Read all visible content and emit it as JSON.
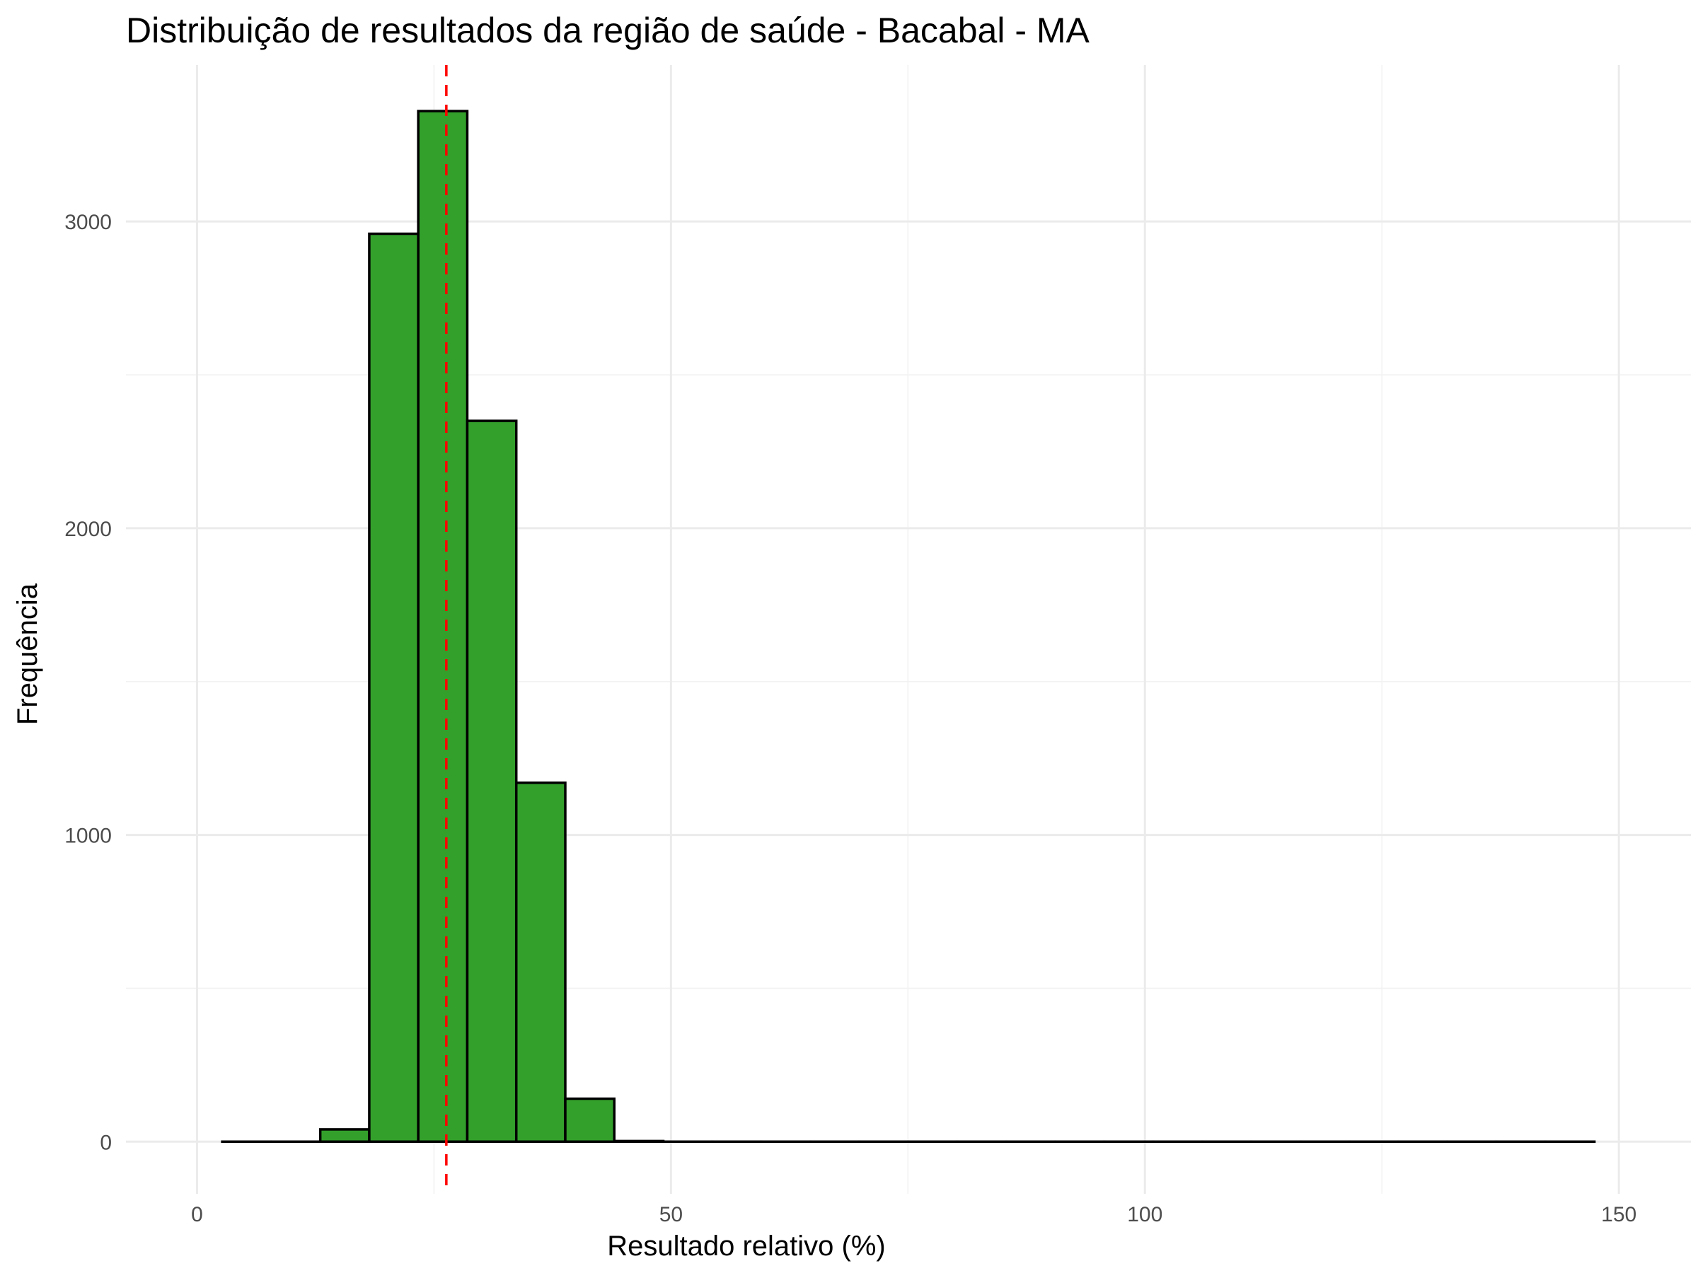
{
  "chart_data": {
    "type": "bar",
    "title": "Distribuição de resultados da região de saúde - Bacabal - MA",
    "xlabel": "Resultado relativo (%)",
    "ylabel": "Frequência",
    "xlim": [
      -7.5,
      157.6
    ],
    "ylim": [
      -170,
      3510
    ],
    "x_ticks": [
      0,
      50,
      100,
      150
    ],
    "x_tick_labels": [
      "0",
      "50",
      "100",
      "150"
    ],
    "y_ticks": [
      0,
      1000,
      2000,
      3000
    ],
    "y_tick_labels": [
      "0",
      "1000",
      "2000",
      "3000"
    ],
    "x_minor_ticks": [
      25,
      75,
      125
    ],
    "y_minor_ticks": [
      500,
      1500,
      2500
    ],
    "grid": true,
    "bin_width": 5.17,
    "bin_starts": [
      2.66,
      7.83,
      13.0,
      18.17,
      23.34,
      28.51,
      33.68,
      38.85,
      44.02,
      49.19,
      54.36,
      59.53,
      64.7,
      69.87,
      75.04,
      80.21,
      85.38,
      90.55,
      95.72,
      100.89,
      106.06,
      111.23,
      116.4,
      121.57,
      126.74,
      131.91,
      137.08,
      142.25
    ],
    "values": [
      0,
      0,
      40,
      2960,
      3360,
      2350,
      1170,
      140,
      2,
      0,
      0,
      0,
      0,
      0,
      0,
      0,
      0,
      0,
      0,
      0,
      0,
      0,
      0,
      0,
      0,
      0,
      0,
      0
    ],
    "mean_line_x": 26.3,
    "colors": {
      "bar_fill": "#33a02c",
      "bar_stroke": "#000000",
      "mean_line": "#ff0000"
    }
  }
}
